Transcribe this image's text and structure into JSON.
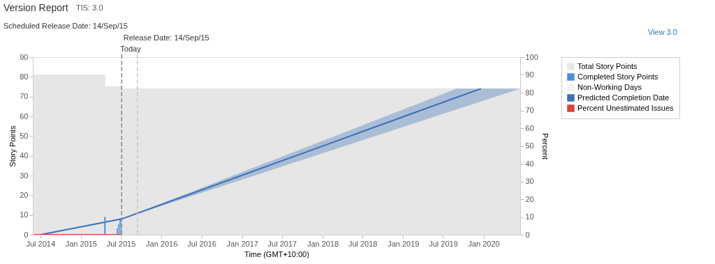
{
  "chart_data": {
    "type": "line",
    "title": "Version Report",
    "subtitle": "TIS: 3.0",
    "xlabel": "Time (GMT+10:00)",
    "ylabel": "Story Points",
    "y2label": "Percent",
    "annotations": [
      "Scheduled Release Date: 14/Sep/15",
      "View 3.0"
    ],
    "xlim": [
      "2014-05-28",
      "2020-06-15"
    ],
    "xticks": [
      {
        "value": "2014-07-01",
        "label": "Jul 2014"
      },
      {
        "value": "2015-01-01",
        "label": "Jan 2015"
      },
      {
        "value": "2015-07-01",
        "label": "Jul 2015"
      },
      {
        "value": "2016-01-01",
        "label": "Jan 2016"
      },
      {
        "value": "2016-07-01",
        "label": "Jul 2016"
      },
      {
        "value": "2017-01-01",
        "label": "Jan 2017"
      },
      {
        "value": "2017-07-01",
        "label": "Jul 2017"
      },
      {
        "value": "2018-01-01",
        "label": "Jan 2018"
      },
      {
        "value": "2018-07-01",
        "label": "Jul 2018"
      },
      {
        "value": "2019-01-01",
        "label": "Jan 2019"
      },
      {
        "value": "2019-07-01",
        "label": "Jul 2019"
      },
      {
        "value": "2020-01-01",
        "label": "Jan 2020"
      }
    ],
    "ylim": [
      0,
      90
    ],
    "yticks": [
      0,
      10,
      20,
      30,
      40,
      50,
      60,
      70,
      80,
      90
    ],
    "y2lim": [
      0,
      100
    ],
    "y2ticks": [
      0,
      10,
      20,
      30,
      40,
      50,
      60,
      70,
      80,
      90,
      100
    ],
    "legend": "right",
    "series": [
      {
        "name": "Total Story Points",
        "type": "area",
        "color": "#e6e6e6",
        "x": [
          "2014-06-01",
          "2015-04-20",
          "2015-04-20",
          "2015-07-05",
          "2015-07-05",
          "2020-06-15"
        ],
        "values": [
          81,
          81,
          75,
          75,
          74,
          74
        ]
      },
      {
        "name": "Completed Story Points",
        "type": "area",
        "color": "#4a8fd6",
        "x": [
          "2015-06-12",
          "2015-06-14",
          "2015-06-14",
          "2015-06-20",
          "2015-06-20",
          "2015-06-27",
          "2015-06-27",
          "2015-07-05"
        ],
        "values": [
          0,
          0,
          3,
          3,
          5,
          5,
          8,
          8
        ]
      },
      {
        "name": "Non-Working Days",
        "type": "area",
        "color": "#f2f2f2"
      },
      {
        "name": "Predicted Completion Date",
        "color": "#3a70b8",
        "x": [
          "2014-07-01",
          "2015-07-05",
          "2019-09-01",
          "2019-12-20",
          "2020-06-15"
        ],
        "values": [
          0,
          8,
          69.6,
          74,
          null
        ],
        "lower": [
          0,
          8,
          63.5,
          67.5,
          74
        ],
        "upper": [
          0,
          8,
          74,
          74,
          74
        ]
      },
      {
        "name": "Percent Unestimated Issues",
        "color": "#d9443a",
        "axis": "y2",
        "x": [
          "2014-06-01",
          "2015-07-05"
        ],
        "values": [
          0,
          0
        ]
      },
      {
        "color": "#4a8fd6",
        "x": [
          "2015-04-20",
          "2015-04-20"
        ],
        "values": [
          0,
          9
        ]
      }
    ],
    "ref_lines": [
      {
        "axis": "x",
        "value": "2015-07-05",
        "label": "Today",
        "color": "#888888",
        "line_style": "dashed"
      },
      {
        "axis": "x",
        "value": "2015-09-14",
        "label": "Release Date: 14/Sep/15",
        "color": "#c8c8c8",
        "line_style": "dashed"
      }
    ]
  }
}
